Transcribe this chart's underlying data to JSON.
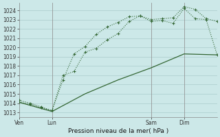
{
  "title": "Pression niveau de la mer( hPa )",
  "bg_color": "#cce8e8",
  "grid_color": "#aacccc",
  "line_color": "#336633",
  "ylim": [
    1012.5,
    1024.8
  ],
  "yticks": [
    1013,
    1014,
    1015,
    1016,
    1017,
    1018,
    1019,
    1020,
    1021,
    1022,
    1023,
    1024
  ],
  "xlim": [
    0,
    72
  ],
  "vline_x": [
    12,
    48,
    60
  ],
  "xtick_pos": [
    0,
    12,
    48,
    60
  ],
  "xtick_labels": [
    "Ven",
    "Lun",
    "Sam",
    "Dim"
  ],
  "line1_x": [
    0,
    4,
    8,
    12,
    16,
    20,
    24,
    28,
    32,
    36,
    40,
    44,
    48,
    52,
    56,
    60,
    64,
    68,
    72
  ],
  "line1_y": [
    1014.1,
    1013.9,
    1013.5,
    1013.2,
    1017.0,
    1017.4,
    1019.5,
    1019.9,
    1020.8,
    1021.5,
    1022.8,
    1023.4,
    1022.8,
    1022.9,
    1022.6,
    1024.2,
    1023.1,
    1023.0,
    1019.2
  ],
  "line2_x": [
    0,
    4,
    8,
    12,
    16,
    20,
    24,
    28,
    32,
    36,
    40,
    44,
    48,
    52,
    56,
    60,
    64,
    68,
    72
  ],
  "line2_y": [
    1014.3,
    1014.0,
    1013.6,
    1013.2,
    1016.5,
    1019.3,
    1020.1,
    1021.4,
    1022.2,
    1022.7,
    1023.3,
    1023.4,
    1023.0,
    1023.1,
    1023.2,
    1024.4,
    1024.1,
    1023.1,
    1022.8
  ],
  "line3_x": [
    0,
    12,
    24,
    36,
    48,
    60,
    72
  ],
  "line3_y": [
    1014.1,
    1013.1,
    1015.0,
    1016.5,
    1017.8,
    1019.3,
    1019.2
  ]
}
